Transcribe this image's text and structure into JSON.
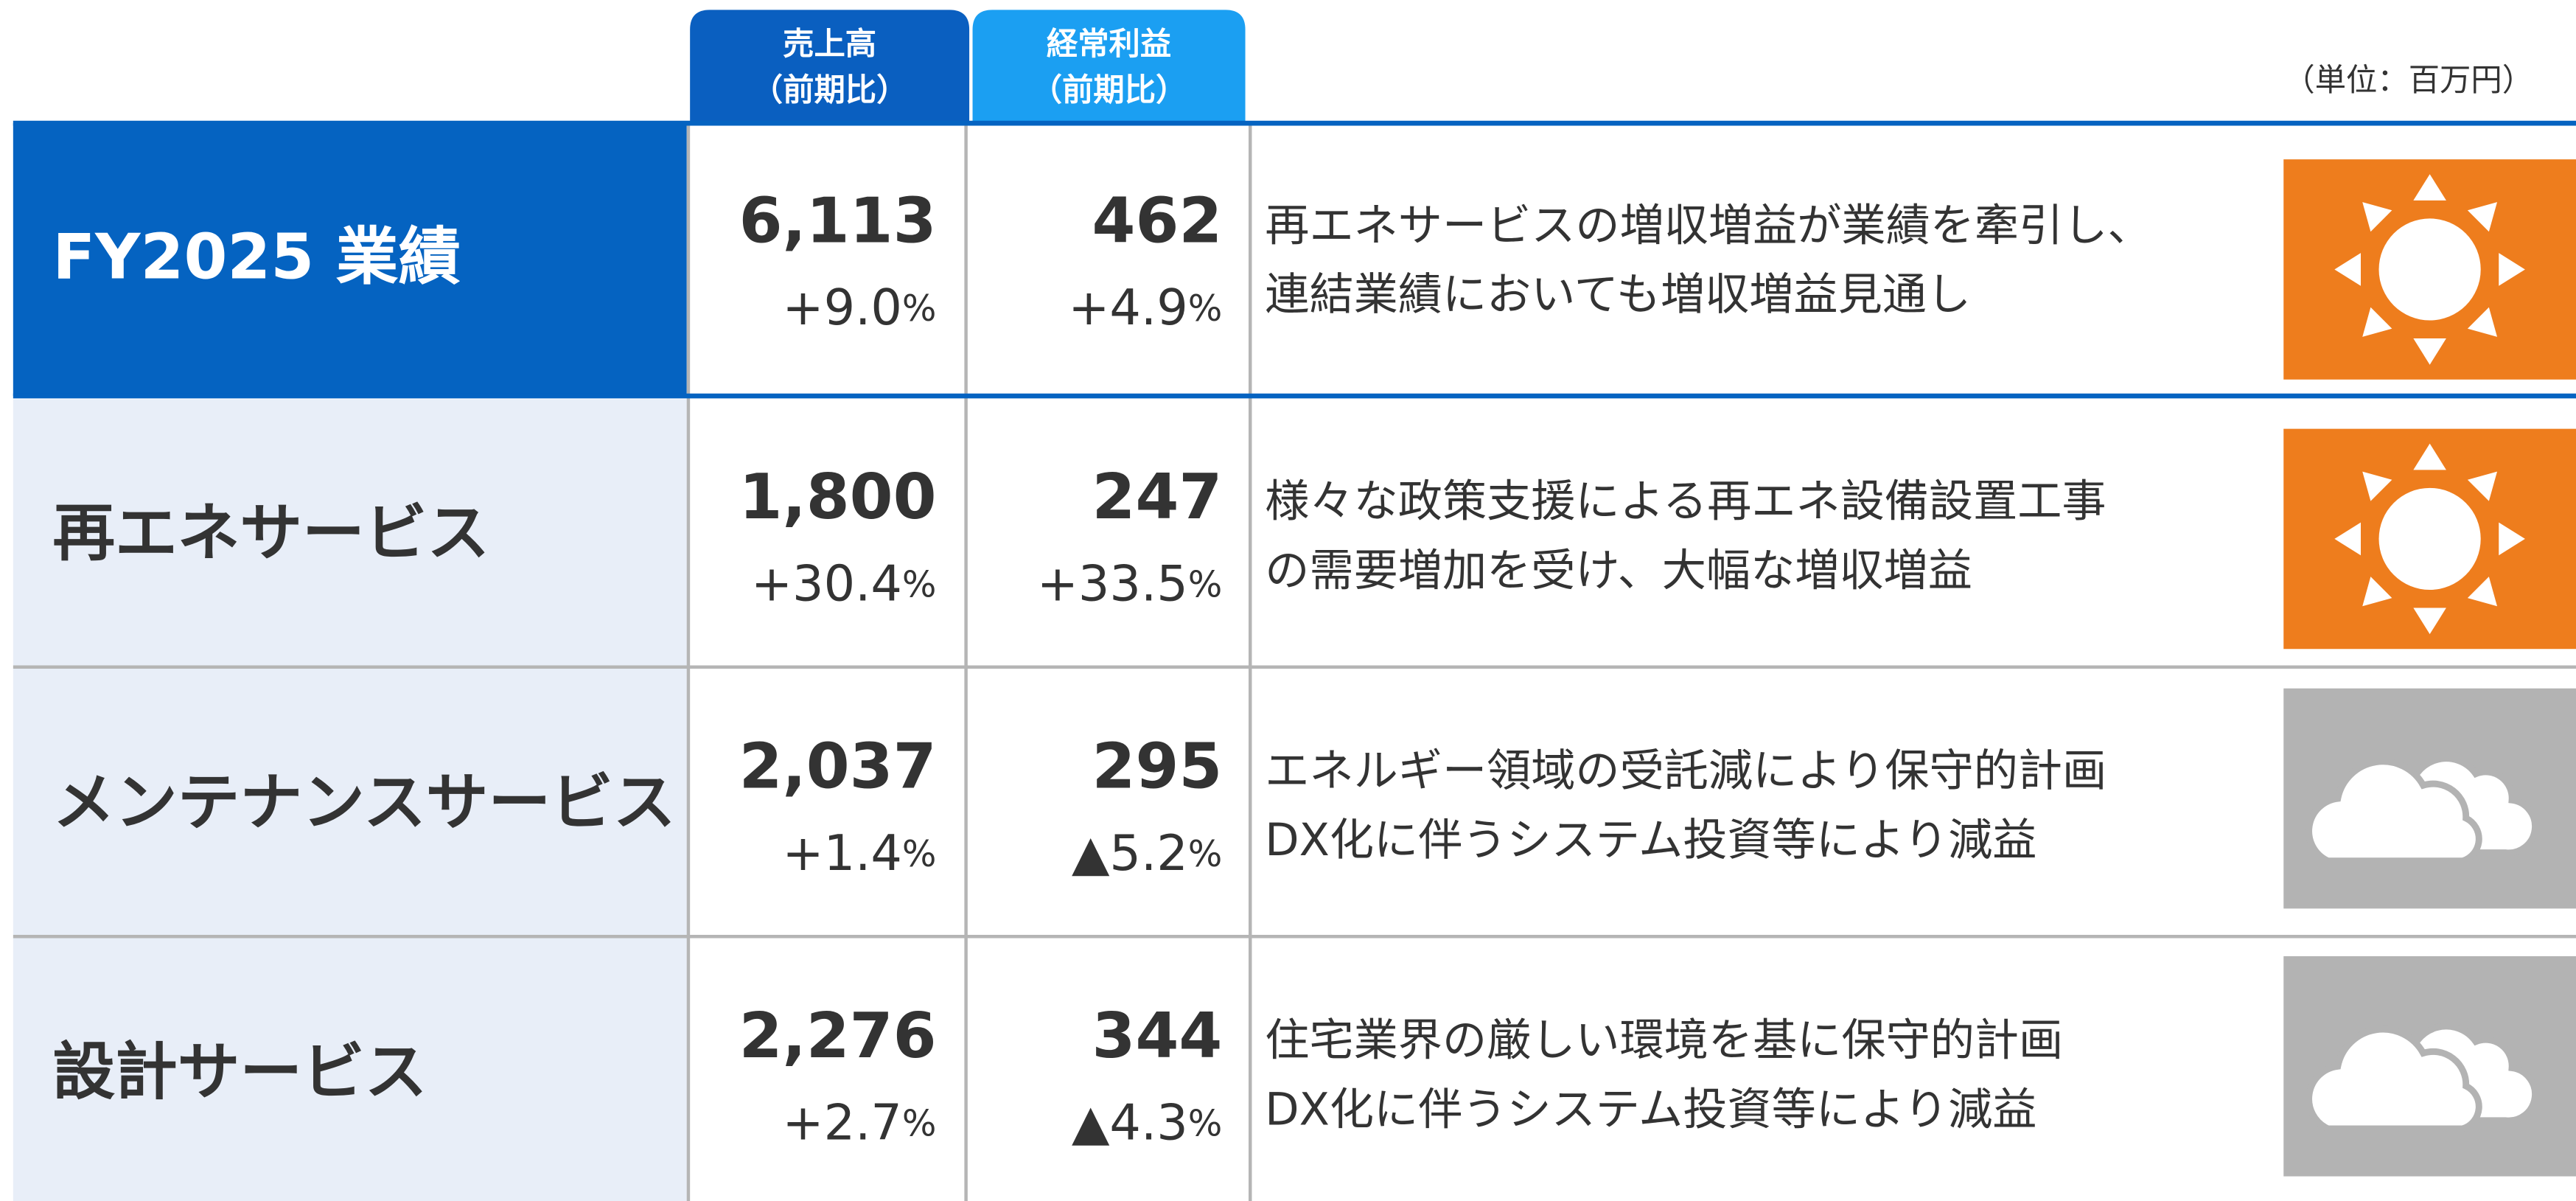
{
  "header": {
    "columns": [
      {
        "lines": [
          "売上高",
          "（前期比）"
        ]
      },
      {
        "lines": [
          "経常利益",
          "（前期比）"
        ]
      }
    ],
    "unit": "（単位：百万円）"
  },
  "table": {
    "rows": [
      {
        "label": "FY2025 業績",
        "sales": "6,113",
        "sales_change": "+9.0%",
        "profit": "462",
        "profit_change": "+4.9%",
        "comment": [
          "再エネサービスの増収増益が業績を牽引し、",
          "連結業績においても増収増益見通し"
        ]
      },
      {
        "label": "再エネサービス",
        "sales": "1,800",
        "sales_change": "+30.4%",
        "profit": "247",
        "profit_change": "+33.5%",
        "comment": [
          "様々な政策支援による再エネ設備設置工事",
          "の需要増加を受け、大幅な増収増益"
        ]
      },
      {
        "label": "メンテナンスサービス",
        "sales": "2,037",
        "sales_change": "+1.4%",
        "profit": "295",
        "profit_change": "▲5.2%",
        "comment": [
          "エネルギー領域の受託減により保守的計画",
          "DX化に伴うシステム投資等により減益"
        ]
      },
      {
        "label": "設計サービス",
        "sales": "2,276",
        "sales_change": "+2.7%",
        "profit": "344",
        "profit_change": "▲4.3%",
        "comment": [
          "住宅業界の厳しい環境を基に保守的計画",
          "DX化に伴うシステム投資等により減益"
        ]
      }
    ]
  }
}
